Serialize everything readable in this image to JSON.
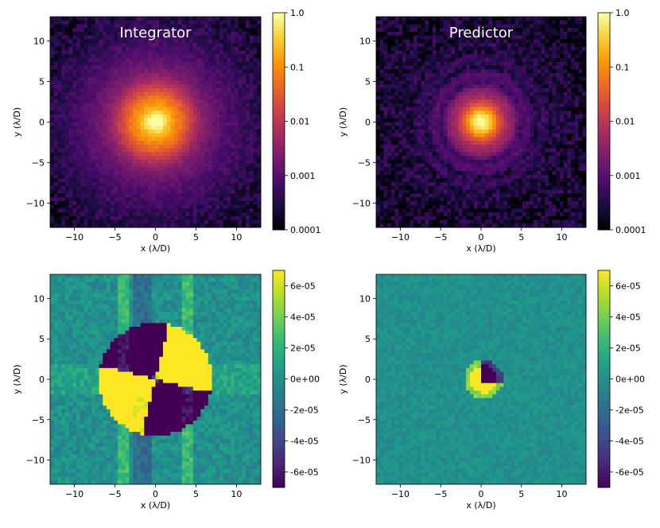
{
  "chart_data": [
    {
      "type": "heatmap",
      "panel": "top-left",
      "title": "Integrator",
      "xlabel": "x (λ/D)",
      "ylabel": "y (λ/D)",
      "xlim": [
        -13,
        13
      ],
      "ylim": [
        -13,
        13
      ],
      "xticks": [
        -10,
        -5,
        0,
        5,
        10
      ],
      "yticks": [
        -10,
        -5,
        0,
        5,
        10
      ],
      "colormap": "inferno",
      "scale": "log",
      "colorbar_range": [
        0.0001,
        1.0
      ],
      "colorbar_ticks": [
        {
          "value": 1.0,
          "label": "1.0"
        },
        {
          "value": 0.1,
          "label": "0.1"
        },
        {
          "value": 0.01,
          "label": "0.01"
        },
        {
          "value": 0.001,
          "label": "0.001"
        },
        {
          "value": 0.0001,
          "label": "0.0001"
        }
      ]
    },
    {
      "type": "heatmap",
      "panel": "top-right",
      "title": "Predictor",
      "xlabel": "x (λ/D)",
      "ylabel": "y (λ/D)",
      "xlim": [
        -13,
        13
      ],
      "ylim": [
        -13,
        13
      ],
      "xticks": [
        -10,
        -5,
        0,
        5,
        10
      ],
      "yticks": [
        -10,
        -5,
        0,
        5,
        10
      ],
      "colormap": "inferno",
      "scale": "log",
      "colorbar_range": [
        0.0001,
        1.0
      ],
      "colorbar_ticks": [
        {
          "value": 1.0,
          "label": "1.0"
        },
        {
          "value": 0.1,
          "label": "0.1"
        },
        {
          "value": 0.01,
          "label": "0.01"
        },
        {
          "value": 0.001,
          "label": "0.001"
        },
        {
          "value": 0.0001,
          "label": "0.0001"
        }
      ]
    },
    {
      "type": "heatmap",
      "panel": "bottom-left",
      "title": "",
      "xlabel": "x (λ/D)",
      "ylabel": "y (λ/D)",
      "xlim": [
        -13,
        13
      ],
      "ylim": [
        -13,
        13
      ],
      "xticks": [
        -10,
        -5,
        0,
        5,
        10
      ],
      "yticks": [
        -10,
        -5,
        0,
        5,
        10
      ],
      "colormap": "viridis",
      "scale": "linear",
      "colorbar_range": [
        -7e-05,
        7e-05
      ],
      "colorbar_ticks": [
        {
          "value": 6e-05,
          "label": "6e-05"
        },
        {
          "value": 4e-05,
          "label": "4e-05"
        },
        {
          "value": 2e-05,
          "label": "2e-05"
        },
        {
          "value": 0,
          "label": "0e+00"
        },
        {
          "value": -2e-05,
          "label": "-2e-05"
        },
        {
          "value": -4e-05,
          "label": "-4e-05"
        },
        {
          "value": -6e-05,
          "label": "-6e-05"
        }
      ]
    },
    {
      "type": "heatmap",
      "panel": "bottom-right",
      "title": "",
      "xlabel": "x (λ/D)",
      "ylabel": "y (λ/D)",
      "xlim": [
        -13,
        13
      ],
      "ylim": [
        -13,
        13
      ],
      "xticks": [
        -10,
        -5,
        0,
        5,
        10
      ],
      "yticks": [
        -10,
        -5,
        0,
        5,
        10
      ],
      "colormap": "viridis",
      "scale": "linear",
      "colorbar_range": [
        -7e-05,
        7e-05
      ],
      "colorbar_ticks": [
        {
          "value": 6e-05,
          "label": "6e-05"
        },
        {
          "value": 4e-05,
          "label": "4e-05"
        },
        {
          "value": 2e-05,
          "label": "2e-05"
        },
        {
          "value": 0,
          "label": "0e+00"
        },
        {
          "value": -2e-05,
          "label": "-2e-05"
        },
        {
          "value": -4e-05,
          "label": "-4e-05"
        },
        {
          "value": -6e-05,
          "label": "-6e-05"
        }
      ]
    }
  ],
  "colors": {
    "inferno": [
      "#000004",
      "#1b0c41",
      "#4a0c6b",
      "#781c6d",
      "#a52c60",
      "#cf4446",
      "#ed6925",
      "#fb9b06",
      "#f7d13d",
      "#fcffa4"
    ],
    "viridis": [
      "#440154",
      "#482878",
      "#3e4a89",
      "#31688e",
      "#26828e",
      "#1f9e89",
      "#35b779",
      "#6ece58",
      "#b5de2b",
      "#fde725"
    ]
  }
}
